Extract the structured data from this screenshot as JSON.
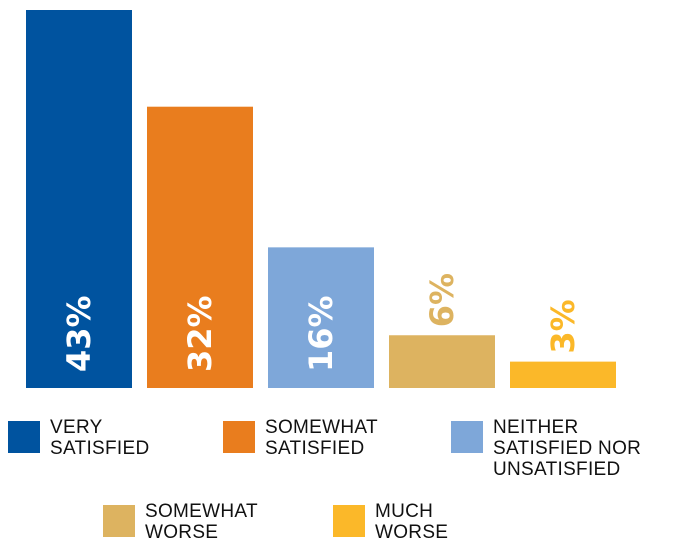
{
  "chart_data": {
    "type": "bar",
    "categories": [
      "VERY\nSATISFIED",
      "SOMEWHAT\nSATISFIED",
      "NEITHER\nSATISFIED NOR\nUNSATISFIED",
      "SOMEWHAT\nWORSE",
      "MUCH\nWORSE"
    ],
    "values": [
      43,
      32,
      16,
      6,
      3
    ],
    "value_labels": [
      "43%",
      "32%",
      "16%",
      "6%",
      "3%"
    ],
    "colors": [
      "#00539f",
      "#e97d1e",
      "#7ea7d9",
      "#ddb360",
      "#fbb829"
    ],
    "ylim": [
      0,
      43
    ],
    "grid": false,
    "legend_placement": "bottom"
  }
}
